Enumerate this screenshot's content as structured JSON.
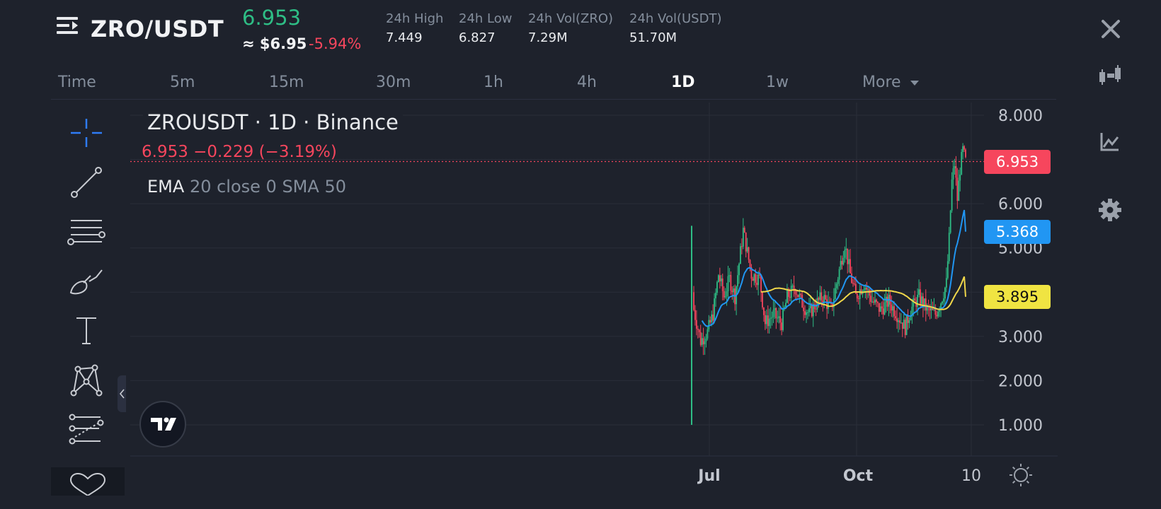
{
  "header": {
    "pair": "ZRO/USDT",
    "last_price": "6.953",
    "approx_usd": "≈ $6.95",
    "change_24h": "-5.94%",
    "stats": [
      {
        "label": "24h High",
        "value": "7.449"
      },
      {
        "label": "24h Low",
        "value": "6.827"
      },
      {
        "label": "24h Vol(ZRO)",
        "value": "7.29M"
      },
      {
        "label": "24h Vol(USDT)",
        "value": "51.70M"
      }
    ]
  },
  "timeframes": {
    "time": "Time",
    "m5": "5m",
    "m15": "15m",
    "m30": "30m",
    "h1": "1h",
    "h4": "4h",
    "d1": "1D",
    "w1": "1w",
    "more": "More"
  },
  "legend": {
    "title": "ZROUSDT · 1D · Binance",
    "ohlc": "6.953  −0.229 (−3.19%)",
    "indicator_name": "EMA",
    "indicator_params": "20 close 0 SMA 50"
  },
  "price_tags": {
    "last": "6.953",
    "ema": "5.368",
    "sma": "3.895"
  },
  "colors": {
    "up": "#2ebd85",
    "down": "#f6465d",
    "ema": "#2196f3",
    "sma": "#f0d74a",
    "background": "#1e222c"
  },
  "icons": [
    "menu-icon",
    "close-icon",
    "candles-icon",
    "indicator-icon",
    "gear-icon",
    "crosshair-icon",
    "trend-line-icon",
    "fib-icon",
    "brush-icon",
    "text-icon",
    "pattern-icon",
    "prediction-icon",
    "heart-icon",
    "tradingview-logo-icon",
    "sun-icon"
  ],
  "chart_data": {
    "type": "candlestick",
    "y_ticks": [
      "8.000",
      "6.000",
      "5.000",
      "3.000",
      "2.000",
      "1.000"
    ],
    "x_ticks": [
      "Jul",
      "Oct",
      "10"
    ],
    "last_price": 6.953,
    "ema_last": 5.368,
    "sma_last": 3.895,
    "ylim": [
      0.5,
      8.5
    ],
    "grid": true
  }
}
